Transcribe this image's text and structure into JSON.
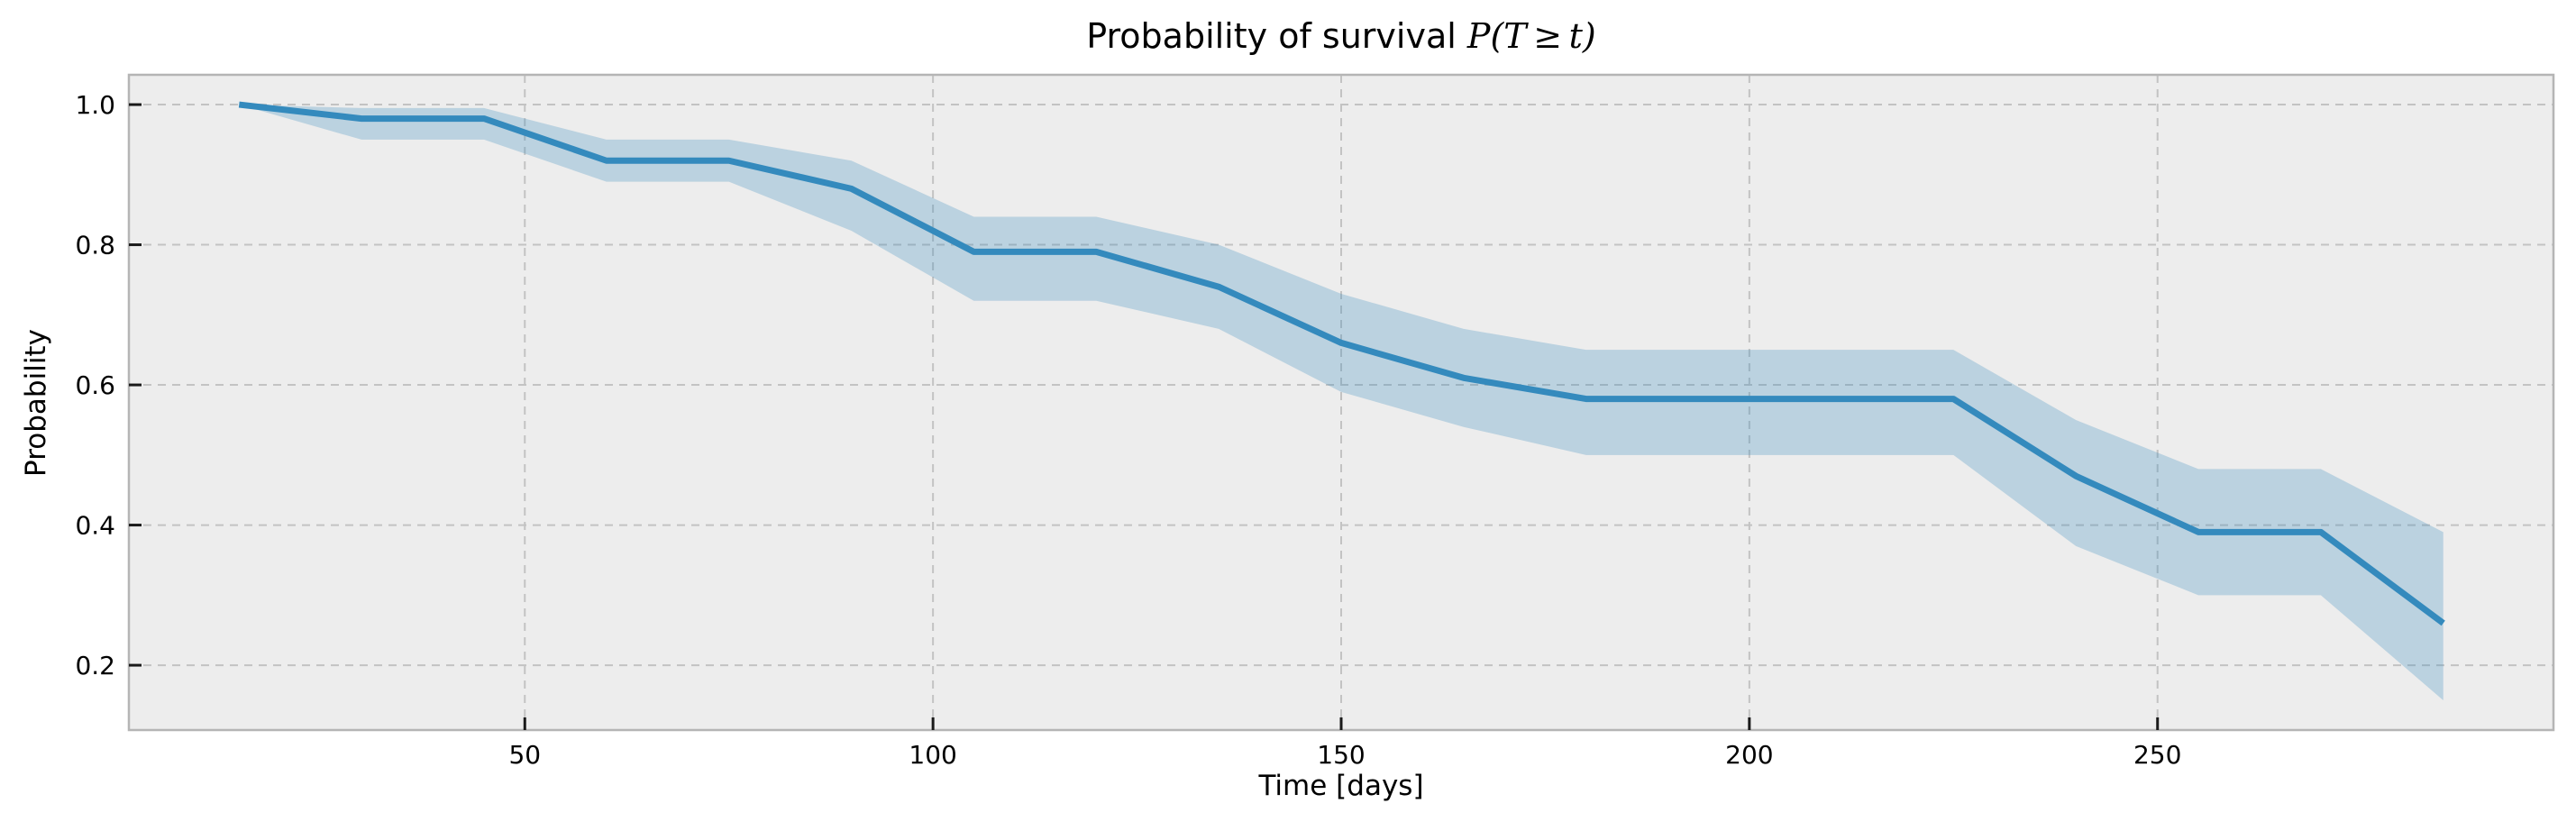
{
  "figure": {
    "title_text": "Probability of survival ",
    "title_math": "P(T ≥ t)",
    "xlabel": "Time [days]",
    "ylabel": "Probability"
  },
  "chart_data": {
    "type": "line",
    "title": "Probability of survival P(T >= t)",
    "xlabel": "Time [days]",
    "ylabel": "Probability",
    "x": [
      15,
      30,
      45,
      60,
      75,
      90,
      105,
      120,
      135,
      150,
      165,
      180,
      195,
      210,
      225,
      240,
      255,
      270,
      285
    ],
    "series": [
      {
        "name": "survival_probability",
        "values": [
          1.0,
          0.98,
          0.98,
          0.92,
          0.92,
          0.88,
          0.79,
          0.79,
          0.74,
          0.66,
          0.61,
          0.58,
          0.58,
          0.58,
          0.58,
          0.47,
          0.39,
          0.39,
          0.26
        ]
      },
      {
        "name": "ci_upper",
        "values": [
          1.0,
          0.995,
          0.995,
          0.95,
          0.95,
          0.92,
          0.84,
          0.84,
          0.8,
          0.73,
          0.68,
          0.65,
          0.65,
          0.65,
          0.65,
          0.55,
          0.48,
          0.48,
          0.39
        ]
      },
      {
        "name": "ci_lower",
        "values": [
          1.0,
          0.95,
          0.95,
          0.89,
          0.89,
          0.82,
          0.72,
          0.72,
          0.68,
          0.59,
          0.54,
          0.5,
          0.5,
          0.5,
          0.5,
          0.37,
          0.3,
          0.3,
          0.15
        ]
      }
    ],
    "xticks": [
      50,
      100,
      150,
      200,
      250
    ],
    "yticks": [
      1.0,
      0.8,
      0.6,
      0.4,
      0.2
    ],
    "xlim": [
      1.5,
      298.5
    ],
    "ylim": [
      0.1075,
      1.0425
    ],
    "grid": true,
    "legend": false,
    "colors": {
      "line": "#348abd",
      "band": "#348abd",
      "band_alpha": 0.27,
      "axes_background": "#ededed",
      "figure_background": "#ffffff",
      "gridline": "#c3c3c3",
      "spine": "#b5b5b5",
      "tick": "#1a1a1a",
      "text": "#000000"
    }
  }
}
